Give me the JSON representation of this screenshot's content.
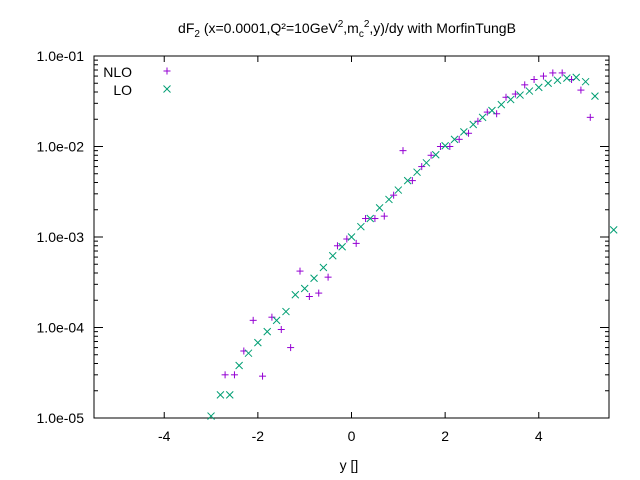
{
  "chart_data": {
    "type": "scatter",
    "title": {
      "prefix": "dF",
      "prefix_sub": "2",
      "part1": " (x=0.0001,Q²=10GeV",
      "part1_sup": "2",
      "part2": ",m",
      "part2_sub": "c",
      "part3_sup": "2",
      "part4": ",y)/dy with MorfinTungB"
    },
    "xlabel": "y []",
    "ylabel": "",
    "xlim": [
      -5.5,
      5.5
    ],
    "ylim": [
      1e-05,
      0.1
    ],
    "yscale": "log",
    "x_ticks": [
      -4,
      -2,
      0,
      2,
      4
    ],
    "x_tick_labels": [
      "-4",
      "-2",
      "0",
      "2",
      "4"
    ],
    "y_ticks": [
      1e-05,
      0.0001,
      0.001,
      0.01,
      0.1
    ],
    "y_tick_labels": [
      "1.0e-05",
      "1.0e-04",
      "1.0e-03",
      "1.0e-02",
      "1.0e-01"
    ],
    "grid": false,
    "legend_position": "top-left",
    "series": [
      {
        "name": "NLO",
        "marker": "plus",
        "color": "#9400d3",
        "points": [
          [
            -2.7,
            3e-05
          ],
          [
            -2.5,
            3e-05
          ],
          [
            -2.3,
            5.5e-05
          ],
          [
            -2.1,
            0.00012
          ],
          [
            -1.9,
            2.9e-05
          ],
          [
            -1.7,
            0.00013
          ],
          [
            -1.5,
            9.5e-05
          ],
          [
            -1.3,
            6e-05
          ],
          [
            -1.1,
            0.00042
          ],
          [
            -0.9,
            0.00022
          ],
          [
            -0.7,
            0.00024
          ],
          [
            -0.5,
            0.00036
          ],
          [
            -0.3,
            0.0008
          ],
          [
            -0.1,
            0.00095
          ],
          [
            0.1,
            0.00085
          ],
          [
            0.3,
            0.0016
          ],
          [
            0.5,
            0.0016
          ],
          [
            0.7,
            0.0017
          ],
          [
            0.9,
            0.0029
          ],
          [
            1.1,
            0.009
          ],
          [
            1.3,
            0.0042
          ],
          [
            1.5,
            0.006
          ],
          [
            1.7,
            0.008
          ],
          [
            1.9,
            0.01
          ],
          [
            2.1,
            0.01
          ],
          [
            2.3,
            0.012
          ],
          [
            2.5,
            0.014
          ],
          [
            2.7,
            0.019
          ],
          [
            2.9,
            0.024
          ],
          [
            3.1,
            0.023
          ],
          [
            3.3,
            0.035
          ],
          [
            3.5,
            0.038
          ],
          [
            3.7,
            0.048
          ],
          [
            3.9,
            0.055
          ],
          [
            4.1,
            0.06
          ],
          [
            4.3,
            0.065
          ],
          [
            4.5,
            0.065
          ],
          [
            4.7,
            0.055
          ],
          [
            4.9,
            0.042
          ],
          [
            5.1,
            0.021
          ],
          [
            -3.9,
            0.07
          ]
        ]
      },
      {
        "name": "LO",
        "marker": "cross",
        "color": "#009e73",
        "points": [
          [
            -3.0,
            1.05e-05
          ],
          [
            -2.8,
            1.8e-05
          ],
          [
            -2.6,
            1.8e-05
          ],
          [
            -2.4,
            3.8e-05
          ],
          [
            -2.2,
            5.2e-05
          ],
          [
            -2.0,
            6.8e-05
          ],
          [
            -1.8,
            9e-05
          ],
          [
            -1.6,
            0.00012
          ],
          [
            -1.4,
            0.00015
          ],
          [
            -1.2,
            0.00023
          ],
          [
            -1.0,
            0.00027
          ],
          [
            -0.8,
            0.00035
          ],
          [
            -0.6,
            0.00046
          ],
          [
            -0.4,
            0.00062
          ],
          [
            -0.2,
            0.00078
          ],
          [
            0.0,
            0.001
          ],
          [
            0.2,
            0.0013
          ],
          [
            0.4,
            0.0016
          ],
          [
            0.6,
            0.0021
          ],
          [
            0.8,
            0.0026
          ],
          [
            1.0,
            0.0033
          ],
          [
            1.2,
            0.0042
          ],
          [
            1.4,
            0.0052
          ],
          [
            1.6,
            0.0066
          ],
          [
            1.8,
            0.0081
          ],
          [
            2.0,
            0.0102
          ],
          [
            2.2,
            0.012
          ],
          [
            2.4,
            0.0145
          ],
          [
            2.6,
            0.0175
          ],
          [
            2.8,
            0.021
          ],
          [
            3.0,
            0.025
          ],
          [
            3.2,
            0.029
          ],
          [
            3.4,
            0.033
          ],
          [
            3.6,
            0.037
          ],
          [
            3.8,
            0.041
          ],
          [
            4.0,
            0.045
          ],
          [
            4.2,
            0.05
          ],
          [
            4.4,
            0.054
          ],
          [
            4.6,
            0.057
          ],
          [
            4.8,
            0.058
          ],
          [
            5.0,
            0.052
          ],
          [
            5.2,
            0.036
          ],
          [
            5.6,
            0.0012
          ],
          [
            -3.9,
            0.042
          ]
        ]
      }
    ]
  }
}
